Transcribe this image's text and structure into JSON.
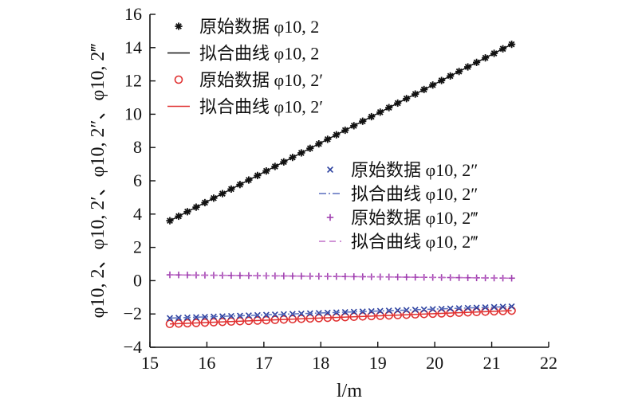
{
  "chart_data": {
    "type": "scatter",
    "xlabel": "l/m",
    "ylabel": "φ10, 2、φ10, 2′、φ10, 2″、φ10, 2‴",
    "xlim": [
      15,
      22
    ],
    "ylim": [
      -4,
      16
    ],
    "x_ticks": [
      15,
      16,
      17,
      18,
      19,
      20,
      21,
      22
    ],
    "y_ticks": [
      -4,
      -2,
      0,
      2,
      4,
      6,
      8,
      10,
      12,
      14,
      16
    ],
    "x_range": [
      15.35,
      21.35
    ],
    "n_points": 40,
    "series": [
      {
        "name": "原始数据 φ10, 2",
        "kind": "markers",
        "marker": "asterisk",
        "color": "#111111",
        "y_start": 3.6,
        "y_end": 14.2
      },
      {
        "name": "拟合曲线 φ10, 2",
        "kind": "line",
        "style": "solid",
        "color": "#111111",
        "y_start": 3.6,
        "y_end": 14.2
      },
      {
        "name": "原始数据 φ10, 2′",
        "kind": "markers",
        "marker": "circle",
        "color": "#e03030",
        "y_start": -2.6,
        "y_end": -1.8
      },
      {
        "name": "拟合曲线 φ10, 2′",
        "kind": "line",
        "style": "solid",
        "color": "#e03030",
        "y_start": -2.6,
        "y_end": -1.8
      },
      {
        "name": "原始数据 φ10, 2″",
        "kind": "markers",
        "marker": "x",
        "color": "#2a3f9e",
        "y_start": -2.25,
        "y_end": -1.55
      },
      {
        "name": "拟合曲线 φ10, 2″",
        "kind": "line",
        "style": "dashdot",
        "color": "#5a6fbe",
        "y_start": -2.25,
        "y_end": -1.55
      },
      {
        "name": "原始数据 φ10, 2‴",
        "kind": "markers",
        "marker": "plus",
        "color": "#a040b0",
        "y_start": 0.35,
        "y_end": 0.15
      },
      {
        "name": "拟合曲线 φ10, 2‴",
        "kind": "line",
        "style": "dashed",
        "color": "#c070c8",
        "y_start": 0.35,
        "y_end": 0.15
      }
    ],
    "legend": [
      {
        "placement": "top-left",
        "items": [
          0,
          1,
          2,
          3
        ]
      },
      {
        "placement": "center-right",
        "items": [
          4,
          5,
          6,
          7
        ]
      }
    ]
  }
}
